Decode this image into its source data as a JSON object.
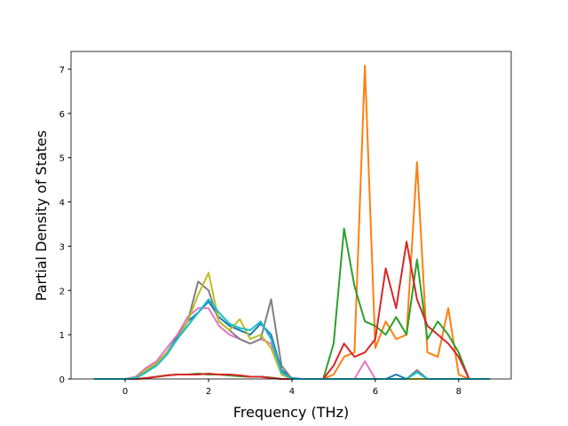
{
  "chart_data": {
    "type": "line",
    "xlabel": "Frequency (THz)",
    "ylabel": "Partial Density of States",
    "x": [
      -0.75,
      -0.5,
      -0.25,
      0,
      0.25,
      0.5,
      0.75,
      1,
      1.25,
      1.5,
      1.75,
      2,
      2.25,
      2.5,
      2.75,
      3,
      3.25,
      3.5,
      3.75,
      4,
      4.25,
      4.5,
      4.75,
      5,
      5.25,
      5.5,
      5.75,
      6,
      6.25,
      6.5,
      6.75,
      7,
      7.25,
      7.5,
      7.75,
      8,
      8.25,
      8.5,
      8.75
    ],
    "xlim": [
      -1.3,
      9.26
    ],
    "ylim": [
      0,
      7.4
    ],
    "xticks": [
      0,
      2,
      4,
      6,
      8
    ],
    "yticks": [
      0,
      1,
      2,
      3,
      4,
      5,
      6,
      7
    ],
    "series": [
      {
        "color": "#1f77b4",
        "values": [
          0,
          0,
          0,
          0,
          0.02,
          0.15,
          0.35,
          0.6,
          0.95,
          1.3,
          1.5,
          1.75,
          1.4,
          1.2,
          1.1,
          1.0,
          1.25,
          1.0,
          0.2,
          0.02,
          0,
          0,
          0,
          0,
          0,
          0,
          0,
          0,
          0,
          0.1,
          0,
          0,
          0,
          0,
          0,
          0,
          0,
          0,
          0
        ]
      },
      {
        "color": "#ff7f0e",
        "values": [
          0,
          0,
          0,
          0,
          0,
          0.01,
          0.05,
          0.08,
          0.1,
          0.1,
          0.12,
          0.1,
          0.1,
          0.08,
          0.08,
          0.05,
          0.05,
          0.03,
          0,
          0,
          0,
          0,
          0,
          0.1,
          0.5,
          0.6,
          7.08,
          0.7,
          1.3,
          0.9,
          1.0,
          4.9,
          0.6,
          0.5,
          1.6,
          0.1,
          0,
          0,
          0
        ]
      },
      {
        "color": "#2ca02c",
        "values": [
          0,
          0,
          0,
          0,
          0,
          0.02,
          0.05,
          0.08,
          0.1,
          0.1,
          0.12,
          0.1,
          0.1,
          0.08,
          0.06,
          0.05,
          0.05,
          0.03,
          0,
          0,
          0,
          0,
          0,
          0.8,
          3.4,
          2.1,
          1.3,
          1.2,
          1.0,
          1.4,
          1.0,
          2.7,
          0.9,
          1.3,
          1.0,
          0.6,
          0,
          0,
          0
        ]
      },
      {
        "color": "#d62728",
        "values": [
          0,
          0,
          0,
          0,
          0,
          0.02,
          0.05,
          0.08,
          0.1,
          0.1,
          0.1,
          0.12,
          0.1,
          0.1,
          0.08,
          0.05,
          0.05,
          0.02,
          0,
          0,
          0,
          0,
          0,
          0.3,
          0.8,
          0.5,
          0.6,
          0.9,
          2.5,
          1.6,
          3.1,
          1.8,
          1.2,
          1.0,
          0.8,
          0.5,
          0,
          0,
          0
        ]
      },
      {
        "color": "#e377c2",
        "values": [
          0,
          0,
          0,
          0,
          0.05,
          0.25,
          0.4,
          0.7,
          1.0,
          1.4,
          1.6,
          1.6,
          1.2,
          1.0,
          0.9,
          0.8,
          0.9,
          0.8,
          0.1,
          0,
          0,
          0,
          0,
          0,
          0,
          0,
          0.4,
          0,
          0,
          0,
          0,
          0,
          0,
          0,
          0,
          0,
          0,
          0,
          0
        ]
      },
      {
        "color": "#7f7f7f",
        "values": [
          0,
          0,
          0,
          0,
          0.03,
          0.2,
          0.35,
          0.6,
          0.9,
          1.3,
          2.2,
          2.0,
          1.3,
          1.1,
          0.9,
          0.8,
          0.9,
          1.8,
          0.3,
          0,
          0,
          0,
          0,
          0,
          0,
          0,
          0,
          0,
          0,
          0,
          0,
          0.2,
          0,
          0,
          0,
          0,
          0,
          0,
          0
        ]
      },
      {
        "color": "#bcbd22",
        "values": [
          0,
          0,
          0,
          0,
          0.03,
          0.2,
          0.35,
          0.6,
          0.9,
          1.3,
          1.9,
          2.4,
          1.3,
          1.1,
          1.35,
          0.9,
          1.0,
          0.7,
          0.1,
          0,
          0,
          0,
          0,
          0,
          0,
          0,
          0,
          0,
          0,
          0,
          0,
          0,
          0,
          0,
          0,
          0,
          0,
          0,
          0
        ]
      },
      {
        "color": "#17becf",
        "values": [
          0,
          0,
          0,
          0,
          0.02,
          0.15,
          0.3,
          0.55,
          0.9,
          1.2,
          1.5,
          1.8,
          1.5,
          1.25,
          1.15,
          1.1,
          1.3,
          0.9,
          0.15,
          0,
          0,
          0,
          0,
          0,
          0,
          0,
          0,
          0,
          0,
          0,
          0,
          0.15,
          0,
          0,
          0,
          0,
          0,
          0,
          0
        ]
      }
    ]
  }
}
